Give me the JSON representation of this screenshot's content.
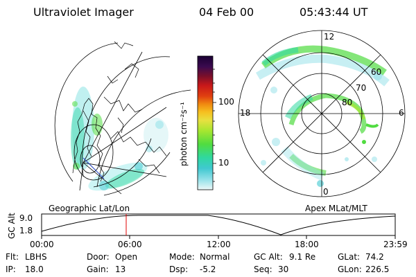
{
  "header": {
    "instrument": "Ultraviolet Imager",
    "date": "04 Feb 00",
    "time": "05:43:44 UT"
  },
  "geo_panel": {
    "label": "Geographic Lat/Lon"
  },
  "polar_panel": {
    "label": "Apex MLat/MLT",
    "mlt_labels": [
      "12",
      "18",
      "6",
      "0"
    ],
    "mlat_labels": [
      "60",
      "70",
      "80"
    ]
  },
  "colorbar": {
    "unit_label": "photon cm⁻²s⁻¹",
    "tick_labels": [
      "100",
      "10"
    ],
    "colors": [
      "#1a0033",
      "#3b0a4f",
      "#5a1046",
      "#7a0f2a",
      "#a01020",
      "#c8181a",
      "#e04010",
      "#f08a10",
      "#f6c020",
      "#e8e040",
      "#a6e630",
      "#50dc40",
      "#30d8a0",
      "#40c8d0",
      "#90e0e8",
      "#d8f0f2"
    ]
  },
  "altitude_strip": {
    "axis_label": "GC Alt",
    "ticks_y": [
      "9.0",
      "1.8"
    ],
    "ticks_x": [
      "00:00",
      "06:00",
      "12:00",
      "18:00",
      "23:59"
    ],
    "marker_time": "05:43"
  },
  "status": {
    "row1": [
      {
        "label": "Flt:",
        "value": "LBHS"
      },
      {
        "label": "Door:",
        "value": "Open"
      },
      {
        "label": "Mode:",
        "value": "Normal"
      },
      {
        "label": "GC Alt:",
        "value": "9.1 Re"
      },
      {
        "label": "GLat:",
        "value": "74.2"
      }
    ],
    "row2": [
      {
        "label": "IP:",
        "value": "18.0"
      },
      {
        "label": "Gain:",
        "value": "13"
      },
      {
        "label": "Dsp:",
        "value": "-5.2"
      },
      {
        "label": "Seq:",
        "value": "30"
      },
      {
        "label": "GLon:",
        "value": "226.5"
      }
    ]
  }
}
